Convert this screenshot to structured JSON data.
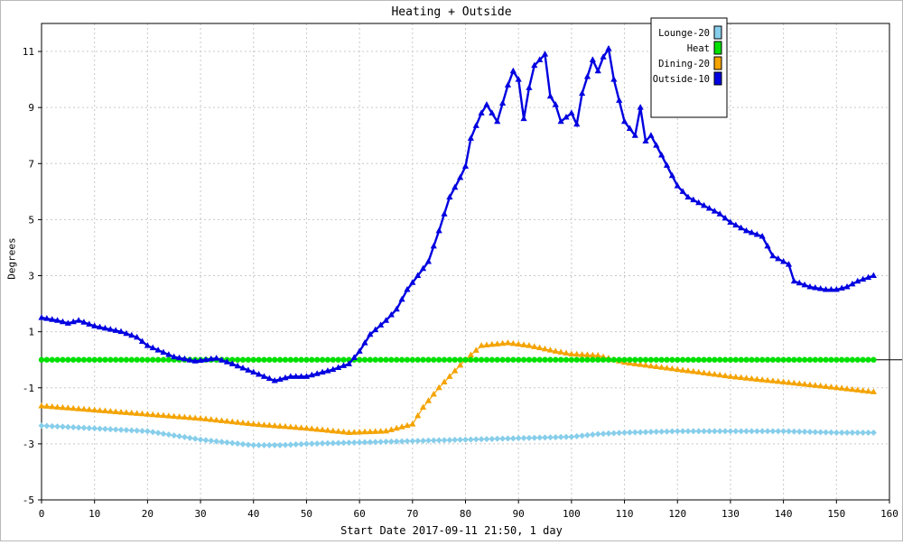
{
  "colors": {
    "lounge": "#87ceeb",
    "heat": "#00e000",
    "dining": "#f4a300",
    "outside": "#0000e0",
    "grid": "#c8c8c8"
  },
  "chart_data": {
    "type": "line",
    "title": "Heating + Outside",
    "xlabel": "Start Date 2017-09-11 21:50, 1 day",
    "ylabel": "Degrees",
    "xlim": [
      0,
      160
    ],
    "ylim": [
      -5,
      12
    ],
    "x_ticks": [
      0,
      10,
      20,
      30,
      40,
      50,
      60,
      70,
      80,
      90,
      100,
      110,
      120,
      130,
      140,
      150,
      160
    ],
    "y_ticks": [
      -5,
      -3,
      -1,
      1,
      3,
      5,
      7,
      9,
      11
    ],
    "grid": true,
    "legend_position": "top-right",
    "series": [
      {
        "name": "Lounge-20",
        "marker": "diamond",
        "color": "#87ceeb",
        "points": [
          [
            0,
            -2.35
          ],
          [
            10,
            -2.45
          ],
          [
            20,
            -2.55
          ],
          [
            25,
            -2.7
          ],
          [
            30,
            -2.85
          ],
          [
            35,
            -2.95
          ],
          [
            40,
            -3.05
          ],
          [
            45,
            -3.05
          ],
          [
            50,
            -3.0
          ],
          [
            60,
            -2.95
          ],
          [
            70,
            -2.9
          ],
          [
            80,
            -2.85
          ],
          [
            90,
            -2.8
          ],
          [
            100,
            -2.75
          ],
          [
            105,
            -2.65
          ],
          [
            110,
            -2.6
          ],
          [
            120,
            -2.55
          ],
          [
            130,
            -2.55
          ],
          [
            140,
            -2.55
          ],
          [
            150,
            -2.6
          ],
          [
            157,
            -2.6
          ]
        ]
      },
      {
        "name": "Heat",
        "marker": "circle",
        "color": "#00e000",
        "points": [
          [
            0,
            0
          ],
          [
            157,
            0
          ]
        ]
      },
      {
        "name": "Dining-20",
        "marker": "triangle",
        "color": "#f4a300",
        "points": [
          [
            0,
            -1.65
          ],
          [
            10,
            -1.8
          ],
          [
            20,
            -1.95
          ],
          [
            30,
            -2.1
          ],
          [
            40,
            -2.3
          ],
          [
            50,
            -2.45
          ],
          [
            58,
            -2.6
          ],
          [
            65,
            -2.55
          ],
          [
            70,
            -2.3
          ],
          [
            72,
            -1.7
          ],
          [
            75,
            -1.0
          ],
          [
            78,
            -0.4
          ],
          [
            80,
            0.0
          ],
          [
            83,
            0.5
          ],
          [
            88,
            0.6
          ],
          [
            92,
            0.5
          ],
          [
            97,
            0.3
          ],
          [
            100,
            0.2
          ],
          [
            105,
            0.15
          ],
          [
            110,
            -0.1
          ],
          [
            120,
            -0.35
          ],
          [
            130,
            -0.6
          ],
          [
            140,
            -0.8
          ],
          [
            150,
            -1.0
          ],
          [
            157,
            -1.15
          ]
        ]
      },
      {
        "name": "Outside-10",
        "marker": "triangle",
        "color": "#0000e0",
        "points": [
          [
            0,
            1.5
          ],
          [
            3,
            1.4
          ],
          [
            5,
            1.3
          ],
          [
            7,
            1.4
          ],
          [
            10,
            1.2
          ],
          [
            15,
            1.0
          ],
          [
            18,
            0.8
          ],
          [
            20,
            0.5
          ],
          [
            25,
            0.1
          ],
          [
            29,
            -0.05
          ],
          [
            33,
            0.05
          ],
          [
            36,
            -0.15
          ],
          [
            40,
            -0.45
          ],
          [
            44,
            -0.75
          ],
          [
            47,
            -0.6
          ],
          [
            50,
            -0.6
          ],
          [
            55,
            -0.35
          ],
          [
            58,
            -0.15
          ],
          [
            60,
            0.3
          ],
          [
            62,
            0.9
          ],
          [
            65,
            1.4
          ],
          [
            67,
            1.8
          ],
          [
            69,
            2.5
          ],
          [
            71,
            3.0
          ],
          [
            73,
            3.5
          ],
          [
            75,
            4.6
          ],
          [
            77,
            5.8
          ],
          [
            79,
            6.5
          ],
          [
            80,
            6.9
          ],
          [
            81,
            7.9
          ],
          [
            83,
            8.8
          ],
          [
            84,
            9.1
          ],
          [
            86,
            8.5
          ],
          [
            88,
            9.8
          ],
          [
            89,
            10.3
          ],
          [
            90,
            10.0
          ],
          [
            91,
            8.6
          ],
          [
            92,
            9.7
          ],
          [
            93,
            10.5
          ],
          [
            95,
            10.9
          ],
          [
            96,
            9.4
          ],
          [
            97,
            9.1
          ],
          [
            98,
            8.5
          ],
          [
            100,
            8.8
          ],
          [
            101,
            8.4
          ],
          [
            102,
            9.5
          ],
          [
            104,
            10.7
          ],
          [
            105,
            10.3
          ],
          [
            106,
            10.8
          ],
          [
            107,
            11.1
          ],
          [
            108,
            10.0
          ],
          [
            110,
            8.5
          ],
          [
            112,
            8.0
          ],
          [
            113,
            9.0
          ],
          [
            114,
            7.8
          ],
          [
            115,
            8.0
          ],
          [
            117,
            7.3
          ],
          [
            120,
            6.2
          ],
          [
            122,
            5.8
          ],
          [
            125,
            5.5
          ],
          [
            128,
            5.2
          ],
          [
            130,
            4.9
          ],
          [
            133,
            4.6
          ],
          [
            136,
            4.4
          ],
          [
            138,
            3.7
          ],
          [
            141,
            3.4
          ],
          [
            142,
            2.8
          ],
          [
            145,
            2.6
          ],
          [
            148,
            2.5
          ],
          [
            150,
            2.5
          ],
          [
            152,
            2.6
          ],
          [
            154,
            2.8
          ],
          [
            157,
            3.0
          ]
        ]
      }
    ]
  }
}
